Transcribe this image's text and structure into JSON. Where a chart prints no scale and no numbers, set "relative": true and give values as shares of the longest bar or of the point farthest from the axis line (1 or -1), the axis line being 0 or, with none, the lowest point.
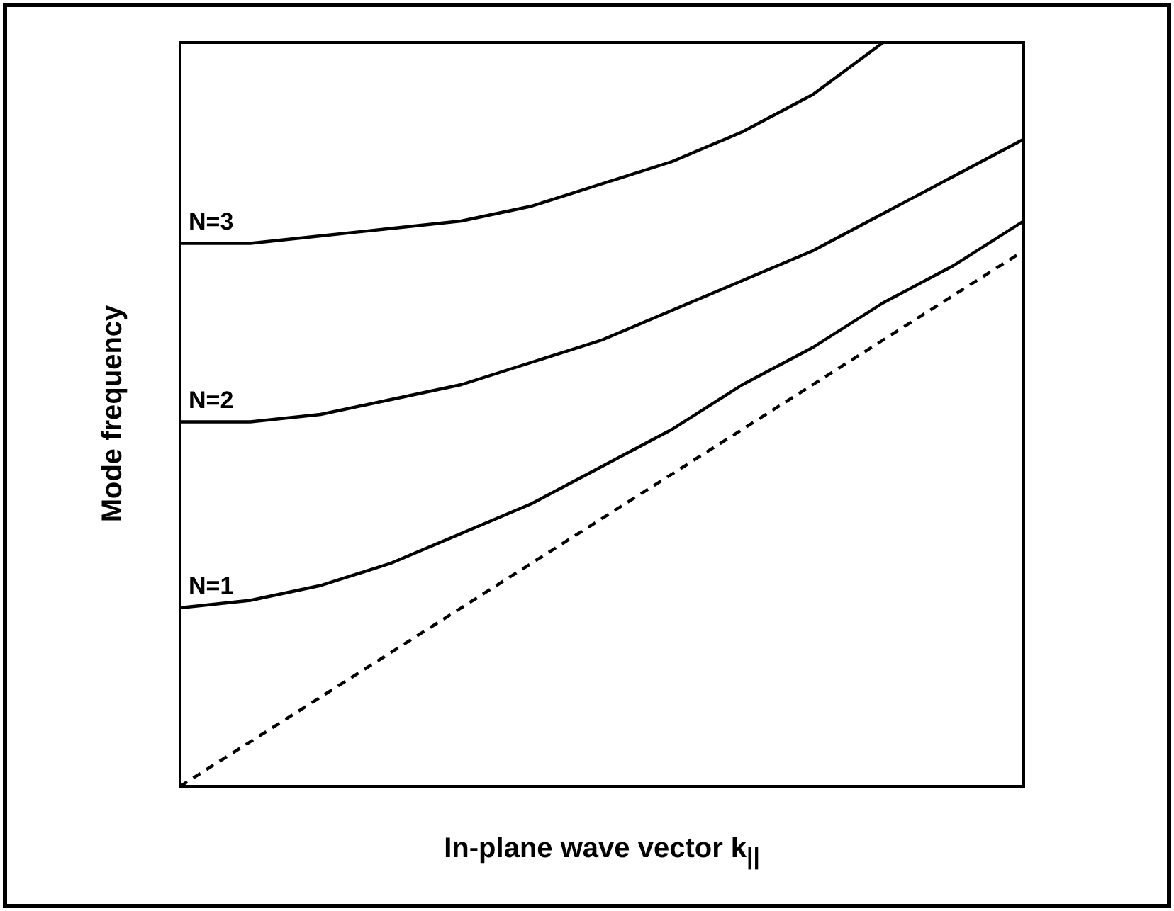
{
  "chart_data": {
    "type": "line",
    "relative": true,
    "xlabel": "In-plane wave vector k$_{||}$",
    "ylabel": "Mode frequency",
    "grid": false,
    "legend": false,
    "marker": "none",
    "categories": [
      null,
      null,
      null,
      null,
      null,
      null,
      null,
      null,
      null,
      null,
      null,
      null,
      null
    ],
    "series": [
      {
        "name": "N=1",
        "color": "#000000",
        "line_style": "solid",
        "values": [
          0.24,
          0.25,
          0.27,
          0.3,
          0.34,
          0.38,
          0.43,
          0.48,
          0.54,
          0.59,
          0.65,
          0.7,
          0.76
        ]
      },
      {
        "name": "N=2",
        "color": "#000000",
        "line_style": "solid",
        "values": [
          0.49,
          0.49,
          0.5,
          0.52,
          0.54,
          0.57,
          0.6,
          0.64,
          0.68,
          0.72,
          0.77,
          0.82,
          0.87
        ]
      },
      {
        "name": "N=3",
        "color": "#000000",
        "line_style": "solid",
        "values": [
          0.73,
          0.73,
          0.74,
          0.75,
          0.76,
          0.78,
          0.81,
          0.84,
          0.88,
          0.93,
          1.0,
          null,
          null
        ]
      },
      {
        "color": "#000000",
        "line_style": "dashed",
        "values": [
          0,
          0.06,
          0.12,
          0.18,
          0.24,
          0.3,
          0.36,
          0.42,
          0.48,
          0.54,
          0.6,
          0.66,
          0.72
        ]
      }
    ]
  }
}
